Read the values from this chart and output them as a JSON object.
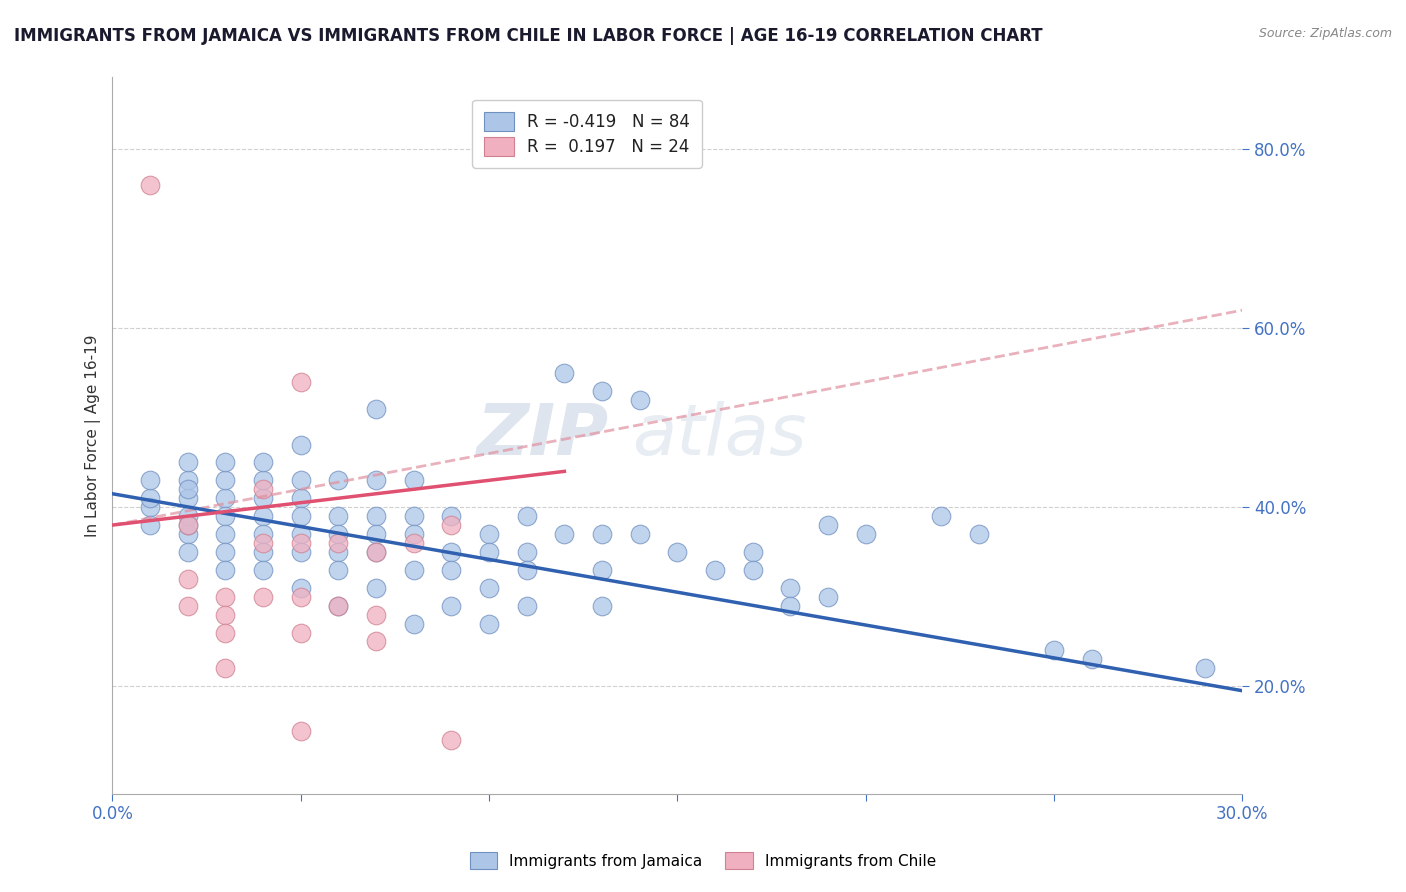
{
  "title": "IMMIGRANTS FROM JAMAICA VS IMMIGRANTS FROM CHILE IN LABOR FORCE | AGE 16-19 CORRELATION CHART",
  "source_text": "Source: ZipAtlas.com",
  "ylabel": "In Labor Force | Age 16-19",
  "xlim": [
    0.0,
    0.3
  ],
  "ylim": [
    0.08,
    0.88
  ],
  "ytick_values": [
    0.2,
    0.4,
    0.6,
    0.8
  ],
  "ytick_labels": [
    "20.0%",
    "40.0%",
    "60.0%",
    "80.0%"
  ],
  "xtick_values": [
    0.0,
    0.05,
    0.1,
    0.15,
    0.2,
    0.25,
    0.3
  ],
  "xtick_labels": [
    "0.0%",
    "",
    "",
    "",
    "",
    "",
    "30.0%"
  ],
  "grid_ytick_values": [
    0.2,
    0.4,
    0.6,
    0.8
  ],
  "background_color": "#ffffff",
  "grid_color": "#d0d0d0",
  "watermark_text": "ZIPatlas",
  "legend_R1": "-0.419",
  "legend_N1": "84",
  "legend_R2": "0.197",
  "legend_N2": "24",
  "jamaica_color": "#adc6e8",
  "chile_color": "#f0b0c0",
  "jamaica_edge_color": "#7090c0",
  "chile_edge_color": "#d08090",
  "jamaica_line_color": "#3060b0",
  "chile_solid_color": "#e05070",
  "chile_dashed_color": "#e090a0",
  "tick_label_color": "#4472c4",
  "jamaica_trendline": [
    [
      0.0,
      0.415
    ],
    [
      0.3,
      0.195
    ]
  ],
  "chile_solid_trendline": [
    [
      0.0,
      0.38
    ],
    [
      0.12,
      0.44
    ]
  ],
  "chile_dashed_trendline": [
    [
      0.0,
      0.38
    ],
    [
      0.3,
      0.62
    ]
  ],
  "jamaica_scatter": [
    [
      0.01,
      0.4
    ],
    [
      0.01,
      0.41
    ],
    [
      0.01,
      0.38
    ],
    [
      0.01,
      0.43
    ],
    [
      0.02,
      0.41
    ],
    [
      0.02,
      0.39
    ],
    [
      0.02,
      0.43
    ],
    [
      0.02,
      0.45
    ],
    [
      0.02,
      0.37
    ],
    [
      0.02,
      0.35
    ],
    [
      0.02,
      0.42
    ],
    [
      0.02,
      0.38
    ],
    [
      0.03,
      0.41
    ],
    [
      0.03,
      0.39
    ],
    [
      0.03,
      0.37
    ],
    [
      0.03,
      0.43
    ],
    [
      0.03,
      0.45
    ],
    [
      0.03,
      0.35
    ],
    [
      0.03,
      0.33
    ],
    [
      0.04,
      0.41
    ],
    [
      0.04,
      0.39
    ],
    [
      0.04,
      0.37
    ],
    [
      0.04,
      0.43
    ],
    [
      0.04,
      0.35
    ],
    [
      0.04,
      0.33
    ],
    [
      0.04,
      0.45
    ],
    [
      0.05,
      0.41
    ],
    [
      0.05,
      0.39
    ],
    [
      0.05,
      0.37
    ],
    [
      0.05,
      0.43
    ],
    [
      0.05,
      0.35
    ],
    [
      0.05,
      0.31
    ],
    [
      0.05,
      0.47
    ],
    [
      0.06,
      0.39
    ],
    [
      0.06,
      0.37
    ],
    [
      0.06,
      0.35
    ],
    [
      0.06,
      0.33
    ],
    [
      0.06,
      0.43
    ],
    [
      0.06,
      0.29
    ],
    [
      0.07,
      0.39
    ],
    [
      0.07,
      0.37
    ],
    [
      0.07,
      0.35
    ],
    [
      0.07,
      0.31
    ],
    [
      0.07,
      0.43
    ],
    [
      0.07,
      0.51
    ],
    [
      0.08,
      0.39
    ],
    [
      0.08,
      0.37
    ],
    [
      0.08,
      0.33
    ],
    [
      0.08,
      0.43
    ],
    [
      0.08,
      0.27
    ],
    [
      0.09,
      0.39
    ],
    [
      0.09,
      0.35
    ],
    [
      0.09,
      0.33
    ],
    [
      0.09,
      0.29
    ],
    [
      0.1,
      0.37
    ],
    [
      0.1,
      0.35
    ],
    [
      0.1,
      0.31
    ],
    [
      0.1,
      0.27
    ],
    [
      0.11,
      0.39
    ],
    [
      0.11,
      0.35
    ],
    [
      0.11,
      0.33
    ],
    [
      0.11,
      0.29
    ],
    [
      0.12,
      0.55
    ],
    [
      0.12,
      0.37
    ],
    [
      0.13,
      0.37
    ],
    [
      0.13,
      0.33
    ],
    [
      0.13,
      0.29
    ],
    [
      0.13,
      0.53
    ],
    [
      0.14,
      0.52
    ],
    [
      0.14,
      0.37
    ],
    [
      0.15,
      0.35
    ],
    [
      0.16,
      0.33
    ],
    [
      0.17,
      0.35
    ],
    [
      0.17,
      0.33
    ],
    [
      0.18,
      0.31
    ],
    [
      0.18,
      0.29
    ],
    [
      0.19,
      0.3
    ],
    [
      0.19,
      0.38
    ],
    [
      0.2,
      0.37
    ],
    [
      0.22,
      0.39
    ],
    [
      0.23,
      0.37
    ],
    [
      0.25,
      0.24
    ],
    [
      0.26,
      0.23
    ],
    [
      0.29,
      0.22
    ]
  ],
  "chile_scatter": [
    [
      0.01,
      0.76
    ],
    [
      0.02,
      0.38
    ],
    [
      0.02,
      0.32
    ],
    [
      0.02,
      0.29
    ],
    [
      0.03,
      0.3
    ],
    [
      0.03,
      0.28
    ],
    [
      0.03,
      0.26
    ],
    [
      0.03,
      0.22
    ],
    [
      0.04,
      0.42
    ],
    [
      0.04,
      0.36
    ],
    [
      0.04,
      0.3
    ],
    [
      0.05,
      0.54
    ],
    [
      0.05,
      0.36
    ],
    [
      0.05,
      0.3
    ],
    [
      0.05,
      0.26
    ],
    [
      0.05,
      0.15
    ],
    [
      0.06,
      0.36
    ],
    [
      0.06,
      0.29
    ],
    [
      0.07,
      0.35
    ],
    [
      0.07,
      0.28
    ],
    [
      0.07,
      0.25
    ],
    [
      0.08,
      0.36
    ],
    [
      0.09,
      0.38
    ],
    [
      0.09,
      0.14
    ]
  ]
}
